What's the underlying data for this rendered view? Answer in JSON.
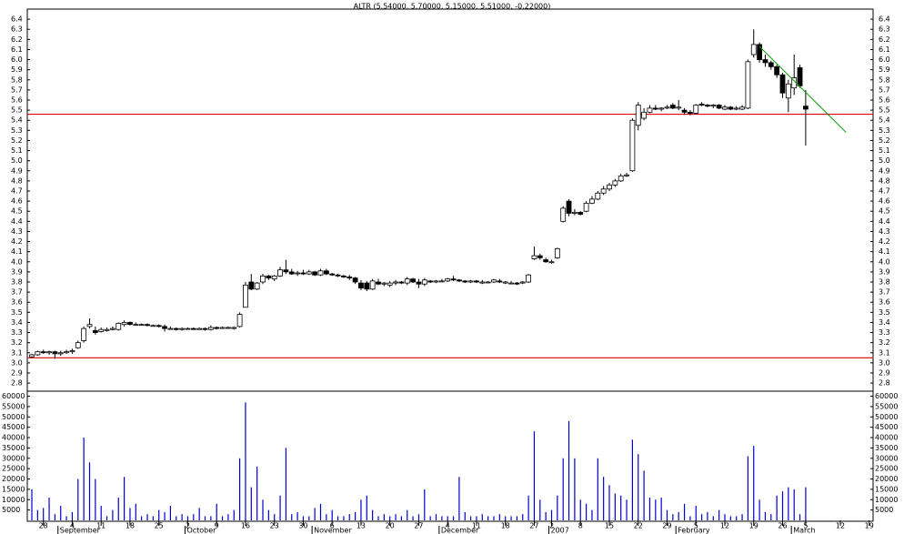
{
  "chart_data": {
    "type": "candlestick",
    "title": "ALTR (5.54000, 5.70000, 5.15000, 5.51000, -0.22000)",
    "categories": [
      null,
      null,
      "28",
      null,
      null,
      null,
      null,
      "4",
      null,
      null,
      null,
      null,
      "11",
      null,
      null,
      null,
      null,
      "18",
      null,
      null,
      null,
      null,
      "25",
      null,
      null,
      null,
      null,
      "2",
      null,
      null,
      null,
      null,
      "9",
      null,
      null,
      null,
      null,
      "16",
      null,
      null,
      null,
      null,
      "23",
      null,
      null,
      null,
      null,
      "30",
      null,
      null,
      null,
      null,
      "6",
      null,
      null,
      null,
      null,
      "13",
      null,
      null,
      null,
      null,
      "20",
      null,
      null,
      null,
      null,
      "27",
      null,
      null,
      null,
      null,
      "4",
      null,
      null,
      null,
      null,
      "11",
      null,
      null,
      null,
      null,
      "18",
      null,
      null,
      null,
      null,
      "27",
      null,
      null,
      "2",
      null,
      null,
      null,
      null,
      "8",
      null,
      null,
      null,
      null,
      "15",
      null,
      null,
      null,
      null,
      "22",
      null,
      null,
      null,
      null,
      "29",
      null,
      null,
      null,
      null,
      "5",
      null,
      null,
      null,
      null,
      "12",
      null,
      null,
      null,
      null,
      "19",
      null,
      null,
      null,
      null,
      "26",
      null,
      null,
      null,
      "5",
      null,
      null,
      null,
      null,
      null,
      "12",
      null,
      null,
      null,
      null,
      "19"
    ],
    "months": [
      null,
      null,
      null,
      null,
      null,
      "September",
      null,
      null,
      null,
      null,
      null,
      null,
      null,
      null,
      null,
      null,
      null,
      null,
      null,
      null,
      null,
      null,
      null,
      null,
      null,
      null,
      null,
      "October",
      null,
      null,
      null,
      null,
      null,
      null,
      null,
      null,
      null,
      null,
      null,
      null,
      null,
      null,
      null,
      null,
      null,
      null,
      null,
      null,
      null,
      "November",
      null,
      null,
      null,
      null,
      null,
      null,
      null,
      null,
      null,
      null,
      null,
      null,
      null,
      null,
      null,
      null,
      null,
      null,
      null,
      null,
      null,
      "December",
      null,
      null,
      null,
      null,
      null,
      null,
      null,
      null,
      null,
      null,
      null,
      null,
      null,
      null,
      null,
      null,
      null,
      null,
      "2007",
      null,
      null,
      null,
      null,
      null,
      null,
      null,
      null,
      null,
      null,
      null,
      null,
      null,
      null,
      null,
      null,
      null,
      null,
      null,
      null,
      null,
      "February",
      null,
      null,
      null,
      null,
      null,
      null,
      null,
      null,
      null,
      null,
      null,
      null,
      null,
      null,
      null,
      null,
      null,
      null,
      null,
      "March",
      null,
      null,
      null,
      null,
      null,
      null,
      null,
      null,
      null,
      null,
      null,
      null,
      null
    ],
    "ohlc": [
      [
        3.06,
        3.09,
        3.05,
        3.08
      ],
      [
        3.08,
        3.12,
        3.07,
        3.11
      ],
      [
        3.11,
        3.13,
        3.09,
        3.1
      ],
      [
        3.1,
        3.12,
        3.08,
        3.11
      ],
      [
        3.11,
        3.12,
        3.04,
        3.09
      ],
      [
        3.09,
        3.12,
        3.07,
        3.1
      ],
      [
        3.1,
        3.13,
        3.09,
        3.11
      ],
      [
        3.11,
        3.14,
        3.09,
        3.12
      ],
      [
        3.15,
        3.22,
        3.14,
        3.2
      ],
      [
        3.22,
        3.36,
        3.2,
        3.34
      ],
      [
        3.36,
        3.44,
        3.34,
        3.38
      ],
      [
        3.32,
        3.36,
        3.28,
        3.3
      ],
      [
        3.31,
        3.35,
        3.3,
        3.33
      ],
      [
        3.32,
        3.35,
        3.31,
        3.33
      ],
      [
        3.33,
        3.36,
        3.32,
        3.34
      ],
      [
        3.33,
        3.4,
        3.32,
        3.39
      ],
      [
        3.38,
        3.42,
        3.36,
        3.4
      ],
      [
        3.4,
        3.41,
        3.37,
        3.38
      ],
      [
        3.38,
        3.4,
        3.37,
        3.38
      ],
      [
        3.38,
        3.39,
        3.37,
        3.38
      ],
      [
        3.38,
        3.39,
        3.36,
        3.37
      ],
      [
        3.37,
        3.38,
        3.36,
        3.37
      ],
      [
        3.37,
        3.38,
        3.35,
        3.36
      ],
      [
        3.36,
        3.38,
        3.31,
        3.34
      ],
      [
        3.34,
        3.36,
        3.33,
        3.34
      ],
      [
        3.34,
        3.35,
        3.32,
        3.33
      ],
      [
        3.33,
        3.35,
        3.32,
        3.34
      ],
      [
        3.34,
        3.35,
        3.33,
        3.34
      ],
      [
        3.34,
        3.35,
        3.33,
        3.33
      ],
      [
        3.33,
        3.35,
        3.33,
        3.34
      ],
      [
        3.34,
        3.35,
        3.32,
        3.33
      ],
      [
        3.33,
        3.37,
        3.32,
        3.35
      ],
      [
        3.35,
        3.36,
        3.33,
        3.34
      ],
      [
        3.34,
        3.36,
        3.34,
        3.35
      ],
      [
        3.35,
        3.36,
        3.34,
        3.35
      ],
      [
        3.34,
        3.36,
        3.33,
        3.35
      ],
      [
        3.36,
        3.5,
        3.35,
        3.48
      ],
      [
        3.55,
        3.8,
        3.55,
        3.77
      ],
      [
        3.8,
        3.88,
        3.72,
        3.73
      ],
      [
        3.73,
        3.8,
        3.72,
        3.79
      ],
      [
        3.8,
        3.88,
        3.78,
        3.86
      ],
      [
        3.86,
        3.87,
        3.82,
        3.84
      ],
      [
        3.83,
        3.87,
        3.81,
        3.86
      ],
      [
        3.86,
        3.95,
        3.85,
        3.92
      ],
      [
        3.92,
        4.02,
        3.88,
        3.9
      ],
      [
        3.9,
        3.93,
        3.87,
        3.88
      ],
      [
        3.89,
        3.91,
        3.86,
        3.89
      ],
      [
        3.89,
        3.92,
        3.87,
        3.88
      ],
      [
        3.88,
        3.92,
        3.87,
        3.9
      ],
      [
        3.9,
        3.91,
        3.86,
        3.87
      ],
      [
        3.87,
        3.93,
        3.86,
        3.91
      ],
      [
        3.91,
        3.93,
        3.87,
        3.88
      ],
      [
        3.88,
        3.89,
        3.86,
        3.87
      ],
      [
        3.87,
        3.88,
        3.85,
        3.86
      ],
      [
        3.86,
        3.87,
        3.84,
        3.85
      ],
      [
        3.85,
        3.87,
        3.82,
        3.84
      ],
      [
        3.84,
        3.85,
        3.78,
        3.8
      ],
      [
        3.79,
        3.82,
        3.72,
        3.74
      ],
      [
        3.79,
        3.81,
        3.71,
        3.73
      ],
      [
        3.73,
        3.83,
        3.72,
        3.81
      ],
      [
        3.8,
        3.83,
        3.77,
        3.78
      ],
      [
        3.78,
        3.8,
        3.76,
        3.79
      ],
      [
        3.77,
        3.81,
        3.75,
        3.79
      ],
      [
        3.79,
        3.82,
        3.77,
        3.8
      ],
      [
        3.8,
        3.81,
        3.78,
        3.79
      ],
      [
        3.79,
        3.85,
        3.77,
        3.83
      ],
      [
        3.83,
        3.84,
        3.79,
        3.8
      ],
      [
        3.8,
        3.83,
        3.74,
        3.78
      ],
      [
        3.78,
        3.84,
        3.76,
        3.82
      ],
      [
        3.81,
        3.82,
        3.79,
        3.8
      ],
      [
        3.8,
        3.82,
        3.79,
        3.81
      ],
      [
        3.81,
        3.83,
        3.8,
        3.81
      ],
      [
        3.81,
        3.84,
        3.8,
        3.83
      ],
      [
        3.83,
        3.86,
        3.81,
        3.82
      ],
      [
        3.82,
        3.83,
        3.8,
        3.81
      ],
      [
        3.81,
        3.82,
        3.79,
        3.8
      ],
      [
        3.8,
        3.82,
        3.79,
        3.81
      ],
      [
        3.81,
        3.82,
        3.79,
        3.8
      ],
      [
        3.79,
        3.82,
        3.78,
        3.8
      ],
      [
        3.8,
        3.81,
        3.79,
        3.8
      ],
      [
        3.8,
        3.83,
        3.79,
        3.82
      ],
      [
        3.81,
        3.83,
        3.79,
        3.8
      ],
      [
        3.79,
        3.81,
        3.78,
        3.8
      ],
      [
        3.79,
        3.81,
        3.78,
        3.79
      ],
      [
        3.79,
        3.8,
        3.77,
        3.78
      ],
      [
        3.79,
        3.81,
        3.78,
        3.8
      ],
      [
        3.8,
        3.88,
        3.79,
        3.87
      ],
      [
        4.03,
        4.15,
        4.02,
        4.06
      ],
      [
        4.06,
        4.08,
        4.02,
        4.04
      ],
      [
        4.02,
        4.04,
        3.99,
        4.0
      ],
      [
        4.0,
        4.02,
        3.98,
        4.0
      ],
      [
        4.04,
        4.14,
        4.03,
        4.13
      ],
      [
        4.4,
        4.55,
        4.39,
        4.53
      ],
      [
        4.6,
        4.62,
        4.45,
        4.48
      ],
      [
        4.48,
        4.52,
        4.46,
        4.49
      ],
      [
        4.49,
        4.5,
        4.46,
        4.47
      ],
      [
        4.5,
        4.6,
        4.49,
        4.58
      ],
      [
        4.58,
        4.65,
        4.57,
        4.62
      ],
      [
        4.62,
        4.7,
        4.61,
        4.68
      ],
      [
        4.68,
        4.75,
        4.66,
        4.72
      ],
      [
        4.72,
        4.78,
        4.7,
        4.76
      ],
      [
        4.76,
        4.82,
        4.74,
        4.8
      ],
      [
        4.8,
        4.87,
        4.79,
        4.85
      ],
      [
        4.85,
        4.88,
        4.84,
        4.86
      ],
      [
        4.9,
        5.42,
        4.89,
        5.4
      ],
      [
        5.35,
        5.58,
        5.3,
        5.55
      ],
      [
        5.42,
        5.52,
        5.4,
        5.48
      ],
      [
        5.48,
        5.55,
        5.47,
        5.52
      ],
      [
        5.52,
        5.55,
        5.5,
        5.51
      ],
      [
        5.51,
        5.53,
        5.49,
        5.52
      ],
      [
        5.52,
        5.55,
        5.51,
        5.53
      ],
      [
        5.55,
        5.57,
        5.51,
        5.52
      ],
      [
        5.52,
        5.6,
        5.5,
        5.53
      ],
      [
        5.5,
        5.52,
        5.46,
        5.48
      ],
      [
        5.48,
        5.5,
        5.45,
        5.47
      ],
      [
        5.47,
        5.56,
        5.46,
        5.55
      ],
      [
        5.56,
        5.58,
        5.54,
        5.55
      ],
      [
        5.55,
        5.56,
        5.53,
        5.54
      ],
      [
        5.54,
        5.56,
        5.52,
        5.55
      ],
      [
        5.55,
        5.56,
        5.51,
        5.52
      ],
      [
        5.51,
        5.55,
        5.5,
        5.53
      ],
      [
        5.53,
        5.54,
        5.5,
        5.51
      ],
      [
        5.51,
        5.54,
        5.5,
        5.52
      ],
      [
        5.51,
        5.55,
        5.5,
        5.53
      ],
      [
        5.52,
        6.0,
        5.51,
        5.98
      ],
      [
        6.05,
        6.3,
        6.02,
        6.15
      ],
      [
        6.15,
        6.17,
        5.97,
        6.0
      ],
      [
        6.0,
        6.05,
        5.93,
        5.97
      ],
      [
        5.97,
        5.99,
        5.9,
        5.93
      ],
      [
        5.93,
        5.95,
        5.82,
        5.85
      ],
      [
        5.85,
        5.87,
        5.62,
        5.67
      ],
      [
        5.62,
        5.8,
        5.48,
        5.76
      ],
      [
        5.72,
        6.05,
        5.65,
        5.82
      ],
      [
        5.92,
        5.95,
        5.72,
        5.74
      ],
      [
        5.54,
        5.7,
        5.15,
        5.51
      ],
      null,
      null,
      null,
      null,
      null,
      null,
      null,
      null,
      null,
      null,
      null
    ],
    "ylim": [
      2.72,
      6.5
    ],
    "yticks": [
      2.8,
      2.9,
      {
        "value": 3,
        "label": "3.0"
      },
      3.1,
      3.2,
      3.3,
      3.4,
      3.5,
      3.6,
      3.7,
      3.8,
      3.9,
      {
        "value": 4,
        "label": "4.0"
      },
      4.1,
      4.2,
      4.3,
      4.4,
      4.5,
      4.6,
      4.7,
      4.8,
      4.9,
      {
        "value": 5,
        "label": "5.0"
      },
      5.1,
      5.2,
      5.3,
      5.4,
      5.5,
      5.6,
      5.7,
      5.8,
      5.9,
      {
        "value": 6,
        "label": "6.0"
      },
      6.1,
      6.2,
      6.3,
      6.4
    ],
    "hlines": [
      5.46,
      3.05
    ],
    "hline_color": "#e00000",
    "trend_line": {
      "color": "#00a000",
      "points": [
        [
          126,
          6.13
        ],
        [
          141,
          5.28
        ]
      ]
    },
    "volume": {
      "color": "#0000cc",
      "values": [
        15000,
        5000,
        6000,
        11000,
        3000,
        7000,
        2000,
        4000,
        20000,
        40000,
        28000,
        20000,
        7000,
        2000,
        5000,
        11000,
        21000,
        6000,
        8000,
        2000,
        3000,
        2000,
        5000,
        4000,
        7000,
        2000,
        3000,
        2000,
        3000,
        6000,
        2000,
        2000,
        8000,
        2000,
        3000,
        5000,
        30000,
        57000,
        16000,
        26000,
        10000,
        5000,
        3000,
        12000,
        35000,
        3000,
        4000,
        2000,
        2000,
        6000,
        8000,
        3000,
        5000,
        2000,
        2000,
        3000,
        4000,
        10000,
        12000,
        5000,
        2000,
        3000,
        2000,
        3000,
        2000,
        5000,
        2000,
        3000,
        15000,
        2000,
        3000,
        2000,
        2000,
        2000,
        21000,
        4000,
        2000,
        2000,
        3000,
        2000,
        2000,
        3000,
        2000,
        2000,
        2000,
        3000,
        12000,
        43000,
        10000,
        4000,
        5000,
        12000,
        30000,
        48000,
        30000,
        10000,
        8000,
        5000,
        30000,
        21000,
        17000,
        13000,
        12000,
        10000,
        39000,
        32000,
        24000,
        11000,
        10000,
        11000,
        5000,
        3000,
        4000,
        8000,
        2000,
        7000,
        3000,
        4000,
        2000,
        5000,
        3000,
        2000,
        2000,
        3000,
        31000,
        36000,
        10000,
        4000,
        3000,
        12000,
        14000,
        16000,
        15000,
        3000,
        16000,
        null,
        null,
        null,
        null,
        null,
        null,
        null,
        null,
        null,
        null,
        null
      ],
      "ylim": [
        0,
        62000
      ],
      "yticks": [
        5000,
        10000,
        15000,
        20000,
        25000,
        30000,
        35000,
        40000,
        45000,
        50000,
        55000,
        60000
      ]
    }
  }
}
